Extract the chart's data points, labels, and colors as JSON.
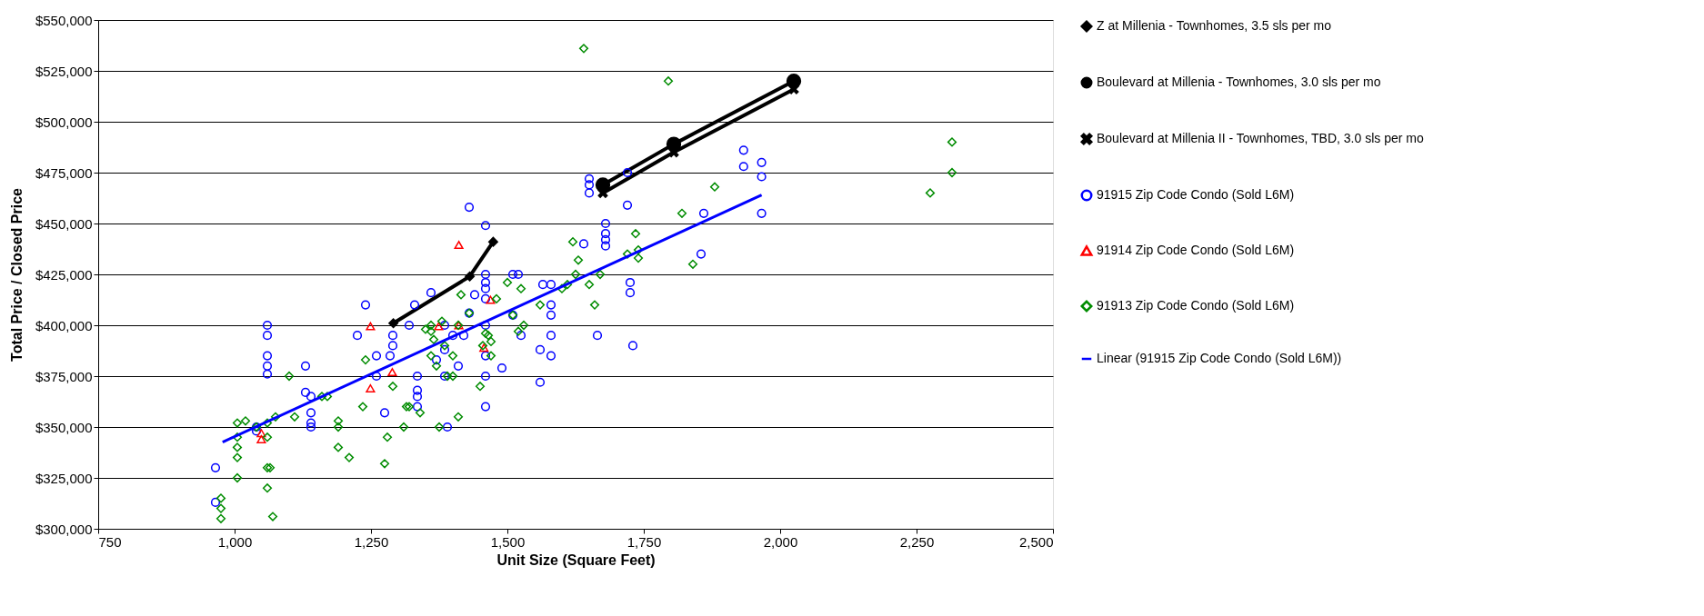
{
  "chart_data": {
    "type": "scatter",
    "xlabel": "Unit Size (Square Feet)",
    "ylabel": "Total Price / Closed Price",
    "xlim": [
      750,
      2500
    ],
    "xticks": [
      750,
      {
        "value": 1000,
        "label": "1,000"
      },
      {
        "value": 1250,
        "label": "1,250"
      },
      {
        "value": 1500,
        "label": "1,500"
      },
      {
        "value": 1750,
        "label": "1,750"
      },
      {
        "value": 2000,
        "label": "2,000"
      },
      {
        "value": 2250,
        "label": "2,250"
      },
      {
        "value": 2500,
        "label": "2,500"
      }
    ],
    "ylim": [
      300000,
      550000
    ],
    "yticks": [
      {
        "value": 300000,
        "label": "$300,000"
      },
      {
        "value": 325000,
        "label": "$325,000"
      },
      {
        "value": 350000,
        "label": "$350,000"
      },
      {
        "value": 375000,
        "label": "$375,000"
      },
      {
        "value": 400000,
        "label": "$400,000"
      },
      {
        "value": 425000,
        "label": "$425,000"
      },
      {
        "value": 450000,
        "label": "$450,000"
      },
      {
        "value": 475000,
        "label": "$475,000"
      },
      {
        "value": 500000,
        "label": "$500,000"
      },
      {
        "value": 525000,
        "label": "$525,000"
      },
      {
        "value": 550000,
        "label": "$550,000"
      }
    ],
    "grid": "y",
    "legend": "right",
    "series": [
      {
        "name": "Z at Millenia - Townhomes, 3.5 sls per mo",
        "type": "line",
        "marker": "diamond",
        "color": "#000000",
        "x": [
          1291,
          1431,
          1474
        ],
        "values": [
          401000,
          424000,
          441000
        ]
      },
      {
        "name": "Boulevard at Millenia - Townhomes, 3.0 sls per mo",
        "type": "line",
        "marker": "circle",
        "color": "#000000",
        "x": [
          1675,
          1805,
          2025
        ],
        "values": [
          469000,
          489000,
          520000
        ]
      },
      {
        "name": "Boulevard at Millenia II - Townhomes, TBD, 3.0 sls per mo",
        "type": "line",
        "marker": "cross",
        "color": "#000000",
        "x": [
          1675,
          1805,
          2025
        ],
        "values": [
          465000,
          485000,
          516000
        ]
      },
      {
        "name": "91915 Zip Code Condo (Sold L6M)",
        "type": "scatter",
        "marker": "circle",
        "color": "#0000ff",
        "x": [
          965,
          965,
          1040,
          1040,
          1060,
          1060,
          1060,
          1060,
          1060,
          1130,
          1130,
          1140,
          1140,
          1140,
          1140,
          1225,
          1240,
          1260,
          1260,
          1275,
          1285,
          1290,
          1290,
          1320,
          1330,
          1335,
          1335,
          1335,
          1335,
          1360,
          1370,
          1385,
          1385,
          1385,
          1390,
          1400,
          1410,
          1420,
          1430,
          1430,
          1440,
          1460,
          1460,
          1460,
          1460,
          1460,
          1460,
          1460,
          1460,
          1460,
          1490,
          1510,
          1520,
          1510,
          1525,
          1560,
          1560,
          1565,
          1580,
          1580,
          1580,
          1580,
          1580,
          1640,
          1650,
          1650,
          1650,
          1665,
          1680,
          1680,
          1680,
          1680,
          1720,
          1720,
          1725,
          1725,
          1730,
          1855,
          1860,
          1933,
          1933,
          1966,
          1966,
          1966
        ],
        "values": [
          330000,
          313000,
          350000,
          348000,
          400000,
          395000,
          385000,
          380000,
          376000,
          380000,
          367000,
          365000,
          357000,
          352000,
          350000,
          395000,
          410000,
          385000,
          375000,
          357000,
          385000,
          390000,
          395000,
          400000,
          410000,
          375000,
          368000,
          365000,
          360000,
          416000,
          383000,
          400000,
          388000,
          375000,
          350000,
          395000,
          380000,
          395000,
          458000,
          406000,
          415000,
          449000,
          425000,
          421000,
          418000,
          413000,
          400000,
          385000,
          375000,
          360000,
          379000,
          425000,
          425000,
          405000,
          395000,
          372000,
          388000,
          420000,
          420000,
          410000,
          405000,
          395000,
          385000,
          440000,
          472000,
          469000,
          465000,
          395000,
          450000,
          445000,
          442000,
          439000,
          475000,
          459000,
          421000,
          416000,
          390000,
          435000,
          455000,
          486000,
          478000,
          480000,
          473000,
          455000
        ]
      },
      {
        "name": "91914 Zip Code Condo (Sold L6M)",
        "type": "scatter",
        "marker": "triangle",
        "color": "#ff0000",
        "x": [
          1049,
          1049,
          1249,
          1249,
          1289,
          1374,
          1411,
          1411,
          1457,
          1469
        ],
        "values": [
          347000,
          344000,
          399500,
          369000,
          377000,
          399500,
          400000,
          439500,
          389000,
          412500
        ]
      },
      {
        "name": "91913 Zip Code Condo (Sold L6M)",
        "type": "scatter",
        "marker": "diamond",
        "color": "#008c00",
        "x": [
          975,
          975,
          975,
          1005,
          1005,
          1005,
          1005,
          1005,
          1020,
          1040,
          1060,
          1060,
          1060,
          1060,
          1065,
          1070,
          1075,
          1100,
          1110,
          1160,
          1170,
          1190,
          1190,
          1190,
          1210,
          1235,
          1240,
          1280,
          1275,
          1290,
          1310,
          1315,
          1320,
          1340,
          1350,
          1360,
          1360,
          1360,
          1365,
          1370,
          1375,
          1380,
          1385,
          1390,
          1400,
          1400,
          1410,
          1410,
          1415,
          1430,
          1450,
          1455,
          1460,
          1465,
          1470,
          1470,
          1480,
          1500,
          1510,
          1520,
          1525,
          1530,
          1560,
          1600,
          1610,
          1620,
          1625,
          1630,
          1640,
          1650,
          1660,
          1670,
          1720,
          1735,
          1740,
          1740,
          1795,
          1820,
          1840,
          1880,
          2275,
          2315,
          2315
        ],
        "values": [
          315000,
          310000,
          305000,
          352000,
          345000,
          340000,
          335000,
          325000,
          353000,
          350000,
          352000,
          345000,
          330000,
          320000,
          330000,
          306000,
          355000,
          375000,
          355000,
          365000,
          365000,
          353000,
          350000,
          340000,
          335000,
          360000,
          383000,
          345000,
          332000,
          370000,
          350000,
          360000,
          360000,
          357000,
          398000,
          400000,
          397000,
          385000,
          393000,
          380000,
          350000,
          402000,
          390000,
          375000,
          385000,
          375000,
          400000,
          355000,
          415000,
          406000,
          370000,
          390000,
          396000,
          395000,
          392000,
          385000,
          413000,
          421000,
          405000,
          397000,
          418000,
          400000,
          410000,
          418000,
          420000,
          441000,
          425000,
          432000,
          536000,
          420000,
          410000,
          425000,
          435000,
          445000,
          437000,
          433000,
          520000,
          455000,
          430000,
          468000,
          465000,
          490000,
          475000
        ]
      },
      {
        "name": "Linear (91915 Zip Code Condo (Sold L6M))",
        "type": "line",
        "marker": "none",
        "color": "#0000ff",
        "x": [
          978,
          1966
        ],
        "values": [
          342600,
          464000
        ]
      }
    ]
  }
}
